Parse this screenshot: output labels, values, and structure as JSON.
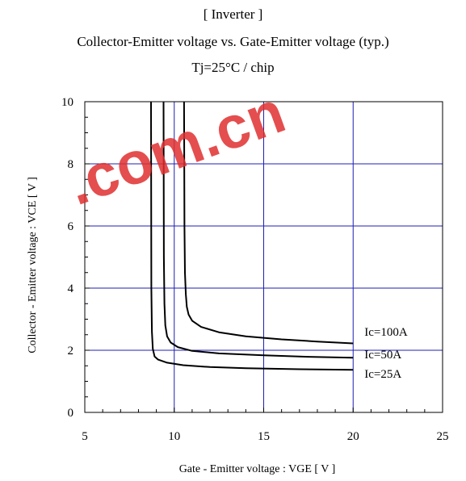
{
  "titles": {
    "line1": "[ Inverter ]",
    "line2": "Collector-Emitter voltage  vs. Gate-Emitter voltage (typ.)",
    "line3": "Tj=25°C / chip"
  },
  "watermark": {
    "text": ".com.cn",
    "color": "#e03030"
  },
  "chart_data": {
    "type": "line",
    "xlabel": "Gate - Emitter voltage  :  VGE  [ V ]",
    "ylabel": "Collector - Emitter voltage  :  VCE  [ V ]",
    "xlim": [
      5,
      25
    ],
    "ylim": [
      0,
      10
    ],
    "xticks": [
      5,
      10,
      15,
      20,
      25
    ],
    "yticks": [
      0,
      2,
      4,
      6,
      8,
      10
    ],
    "grid": true,
    "grid_color": "#1f1fb4",
    "line_color": "#000000",
    "series": [
      {
        "name": "Ic=100A",
        "x": [
          10.55,
          10.57,
          10.6,
          10.65,
          10.7,
          10.8,
          11.0,
          11.5,
          12.5,
          14.0,
          16.0,
          18.0,
          20.0
        ],
        "y": [
          10.0,
          6.0,
          4.5,
          3.8,
          3.4,
          3.15,
          2.95,
          2.75,
          2.58,
          2.45,
          2.35,
          2.28,
          2.22
        ]
      },
      {
        "name": "Ic=50A",
        "x": [
          9.4,
          9.42,
          9.45,
          9.5,
          9.6,
          9.8,
          10.2,
          11.0,
          12.5,
          15.0,
          17.5,
          20.0
        ],
        "y": [
          10.0,
          5.0,
          3.5,
          2.8,
          2.45,
          2.25,
          2.1,
          1.98,
          1.9,
          1.84,
          1.79,
          1.76
        ]
      },
      {
        "name": "Ic=25A",
        "x": [
          8.7,
          8.72,
          8.75,
          8.8,
          8.9,
          9.1,
          9.6,
          10.5,
          12.0,
          14.0,
          17.0,
          20.0
        ],
        "y": [
          10.0,
          4.0,
          2.6,
          2.05,
          1.8,
          1.7,
          1.6,
          1.52,
          1.46,
          1.42,
          1.39,
          1.37
        ]
      }
    ]
  }
}
